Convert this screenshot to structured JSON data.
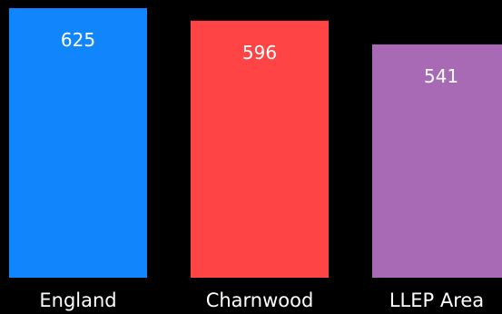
{
  "chart_data": {
    "type": "bar",
    "categories": [
      "England",
      "Charnwood",
      "LLEP Area"
    ],
    "values": [
      625,
      596,
      541
    ],
    "colors": [
      "#1185fb",
      "#fe4444",
      "#a86ab4"
    ],
    "background": "#000000",
    "title": "",
    "xlabel": "",
    "ylabel": "",
    "data_labels": true,
    "grid": false,
    "legend": "none"
  }
}
